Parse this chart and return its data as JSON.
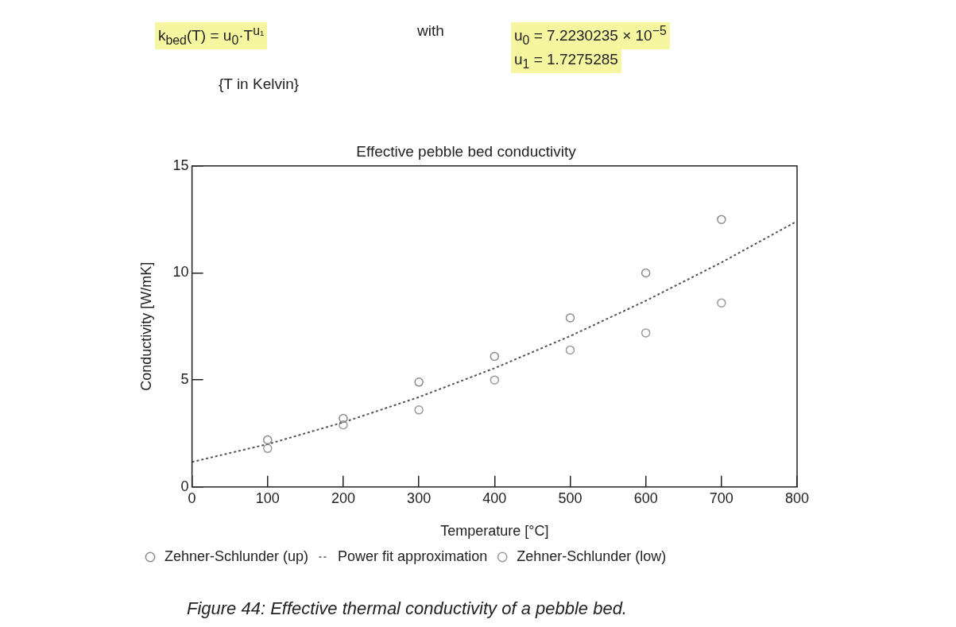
{
  "chart_data": {
    "type": "scatter",
    "title": "Effective pebble bed conductivity",
    "xlabel": "Temperature [°C]",
    "ylabel": "Conductivity [W/mK]",
    "annotations": [
      "k$_{bed}$(T) = u$_{0}$·T$^{u₁}$",
      "with",
      "u$_{0}$ = 7.2230235 × 10$^{−5}$",
      "u$_{1}$ = 1.7275285",
      "{T in Kelvin}",
      "Figure 44: Effective thermal conductivity of a pebble bed."
    ],
    "xlim": [
      0,
      800
    ],
    "xticks": [
      0,
      100,
      200,
      300,
      400,
      500,
      600,
      700,
      800
    ],
    "ylim": [
      0,
      15
    ],
    "yticks": [
      0,
      5,
      10,
      15
    ],
    "grid": false,
    "legend": "bottom left",
    "series": [
      {
        "name": "Zehner-Schlunder (up)",
        "type": "scatter",
        "marker": "circle",
        "color": "#8a8a8a",
        "x": [
          100,
          200,
          300,
          400,
          500,
          600,
          700
        ],
        "values": [
          2.2,
          3.2,
          4.9,
          6.1,
          7.9,
          10.0,
          12.5
        ]
      },
      {
        "name": "Power fit approximation",
        "type": "line",
        "marker": "none",
        "line_style": "dotted",
        "color": "#555555",
        "x": [
          0,
          100,
          200,
          300,
          400,
          500,
          600,
          700,
          800
        ],
        "values": [
          1.17,
          2.0,
          3.02,
          4.2,
          5.55,
          7.05,
          8.7,
          10.49,
          12.42
        ]
      },
      {
        "name": "Zehner-Schlunder (low)",
        "type": "scatter",
        "marker": "circle",
        "color": "#9a9a9a",
        "x": [
          100,
          200,
          300,
          400,
          500,
          600,
          700
        ],
        "values": [
          1.8,
          2.9,
          3.6,
          5.0,
          6.4,
          7.2,
          8.6
        ]
      }
    ]
  }
}
